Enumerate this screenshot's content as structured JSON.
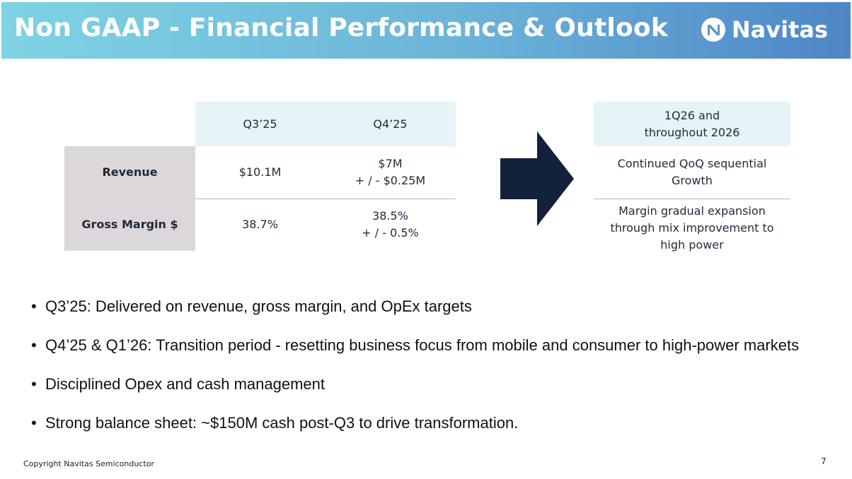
{
  "header": {
    "title": "Non GAAP - Financial Performance & Outlook",
    "logo_text": "Navitas"
  },
  "table": {
    "columns": [
      "Q3’25",
      "Q4’25"
    ],
    "rows": [
      {
        "label": "Revenue",
        "values": [
          "$10.1M",
          "$7M\n+ / - $0.25M"
        ]
      },
      {
        "label": "Gross Margin $",
        "values": [
          "38.7%",
          "38.5%\n+ / - 0.5%"
        ]
      }
    ]
  },
  "outlook": {
    "header": "1Q26 and\nthroughout 2026",
    "items": [
      "Continued QoQ sequential\nGrowth",
      "Margin gradual expansion\nthrough mix improvement to\nhigh power"
    ]
  },
  "bullets": [
    "Q3’25: Delivered on revenue, gross margin, and OpEx targets",
    "Q4’25 & Q1’26: Transition period - resetting business focus from mobile and consumer to high-power markets",
    "Disciplined Opex and cash management",
    "Strong balance sheet: ~$150M cash post-Q3 to drive transformation."
  ],
  "footer": {
    "copyright": "Copyright Navitas Semiconductor",
    "page_number": "7"
  },
  "colors": {
    "header_gradient_start": "#7fd3e4",
    "header_gradient_end": "#4f86c6",
    "table_header_bg": "#e6f4f8",
    "row_label_bg": "#dcd8d9",
    "arrow": "#14213d"
  },
  "icons": {
    "logo": "navitas-logo-icon",
    "arrow": "right-arrow-icon"
  }
}
